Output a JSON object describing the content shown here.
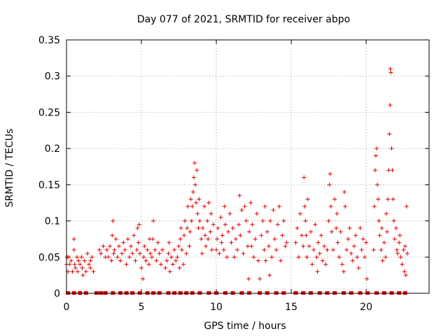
{
  "chart_data": {
    "type": "scatter",
    "title": "Day 077 of 2021, SRMTID for receiver abpo",
    "xlabel": "GPS time / hours",
    "ylabel": "SRMTID / TECUs",
    "xlim": [
      0,
      24.2
    ],
    "ylim": [
      0,
      0.35
    ],
    "x_ticks": [
      0,
      5,
      10,
      15,
      20
    ],
    "x_tick_labels": [
      "0",
      "5",
      "10",
      "15",
      "20"
    ],
    "y_ticks": [
      0,
      0.05,
      0.1,
      0.15,
      0.2,
      0.25,
      0.3,
      0.35
    ],
    "y_tick_labels": [
      "0",
      "0.05",
      "0.1",
      "0.15",
      "0.2",
      "0.25",
      "0.3",
      "0.35"
    ],
    "grid": true,
    "marker": "+",
    "color": "#e00000",
    "zero_baseline_x": [
      0.1,
      0.5,
      0.9,
      1.3,
      2.0,
      2.3,
      2.6,
      3.1,
      3.6,
      4.0,
      4.4,
      4.9,
      5.4,
      5.8,
      6.2,
      6.8,
      7.2,
      7.6,
      8.0,
      8.4,
      8.9,
      9.5,
      10.0,
      10.6,
      11.1,
      11.7,
      12.2,
      12.9,
      13.4,
      14.0,
      14.5,
      15.3,
      15.8,
      16.3,
      16.9,
      17.4,
      17.9,
      18.5,
      19.0,
      19.6,
      20.1,
      20.7,
      21.2,
      21.7,
      22.2,
      22.6
    ],
    "series": [
      {
        "name": "abpo",
        "points": [
          [
            0.0,
            0.04
          ],
          [
            0.05,
            0.05
          ],
          [
            0.1,
            0.03
          ],
          [
            0.15,
            0.05
          ],
          [
            0.2,
            0.04
          ],
          [
            0.3,
            0.045
          ],
          [
            0.4,
            0.03
          ],
          [
            0.5,
            0.06
          ],
          [
            0.55,
            0.04
          ],
          [
            0.6,
            0.035
          ],
          [
            0.7,
            0.05
          ],
          [
            0.75,
            0.03
          ],
          [
            0.8,
            0.045
          ],
          [
            0.9,
            0.04
          ],
          [
            1.0,
            0.05
          ],
          [
            1.05,
            0.035
          ],
          [
            1.1,
            0.025
          ],
          [
            1.2,
            0.045
          ],
          [
            1.3,
            0.03
          ],
          [
            1.4,
            0.055
          ],
          [
            1.5,
            0.04
          ],
          [
            1.6,
            0.035
          ],
          [
            1.7,
            0.05
          ],
          [
            1.8,
            0.03
          ],
          [
            0.5,
            0.075
          ],
          [
            1.6,
            0.045
          ],
          [
            2.2,
            0.06
          ],
          [
            2.3,
            0.055
          ],
          [
            2.45,
            0.065
          ],
          [
            2.6,
            0.05
          ],
          [
            2.7,
            0.06
          ],
          [
            2.8,
            0.05
          ],
          [
            2.9,
            0.065
          ],
          [
            3.0,
            0.045
          ],
          [
            3.05,
            0.08
          ],
          [
            3.1,
            0.1
          ],
          [
            3.15,
            0.055
          ],
          [
            3.2,
            0.06
          ],
          [
            3.3,
            0.075
          ],
          [
            3.4,
            0.05
          ],
          [
            3.5,
            0.065
          ],
          [
            3.6,
            0.045
          ],
          [
            3.7,
            0.055
          ],
          [
            3.8,
            0.07
          ],
          [
            3.9,
            0.06
          ],
          [
            4.0,
            0.04
          ],
          [
            4.1,
            0.075
          ],
          [
            4.2,
            0.05
          ],
          [
            4.3,
            0.065
          ],
          [
            4.4,
            0.055
          ],
          [
            4.5,
            0.08
          ],
          [
            4.6,
            0.045
          ],
          [
            4.7,
            0.06
          ],
          [
            4.8,
            0.07
          ],
          [
            4.9,
            0.055
          ],
          [
            4.75,
            0.09
          ],
          [
            4.85,
            0.095
          ],
          [
            5.0,
            0.035
          ],
          [
            5.1,
            0.02
          ],
          [
            5.15,
            0.05
          ],
          [
            5.2,
            0.065
          ],
          [
            5.3,
            0.045
          ],
          [
            5.4,
            0.06
          ],
          [
            5.5,
            0.04
          ],
          [
            5.55,
            0.075
          ],
          [
            5.6,
            0.055
          ],
          [
            5.7,
            0.05
          ],
          [
            5.75,
            0.075
          ],
          [
            5.8,
            0.1
          ],
          [
            5.9,
            0.06
          ],
          [
            6.0,
            0.045
          ],
          [
            6.1,
            0.07
          ],
          [
            6.2,
            0.055
          ],
          [
            6.3,
            0.04
          ],
          [
            6.4,
            0.06
          ],
          [
            6.6,
            0.035
          ],
          [
            6.7,
            0.045
          ],
          [
            6.8,
            0.055
          ],
          [
            6.85,
            0.07
          ],
          [
            6.9,
            0.03
          ],
          [
            7.0,
            0.05
          ],
          [
            7.1,
            0.04
          ],
          [
            7.2,
            0.06
          ],
          [
            7.3,
            0.045
          ],
          [
            7.4,
            0.05
          ],
          [
            7.5,
            0.065
          ],
          [
            7.55,
            0.035
          ],
          [
            7.6,
            0.075
          ],
          [
            7.65,
            0.09
          ],
          [
            7.7,
            0.06
          ],
          [
            7.8,
            0.04
          ],
          [
            7.85,
            0.08
          ],
          [
            7.9,
            0.1
          ],
          [
            8.0,
            0.055
          ],
          [
            8.05,
            0.09
          ],
          [
            8.1,
            0.12
          ],
          [
            8.2,
            0.065
          ],
          [
            8.25,
            0.085
          ],
          [
            8.3,
            0.13
          ],
          [
            8.35,
            0.1
          ],
          [
            8.4,
            0.12
          ],
          [
            8.45,
            0.14
          ],
          [
            8.5,
            0.16
          ],
          [
            8.55,
            0.18
          ],
          [
            8.6,
            0.15
          ],
          [
            8.65,
            0.125
          ],
          [
            8.7,
            0.17
          ],
          [
            8.75,
            0.11
          ],
          [
            8.8,
            0.09
          ],
          [
            8.85,
            0.13
          ],
          [
            8.9,
            0.1
          ],
          [
            9.0,
            0.075
          ],
          [
            9.05,
            0.055
          ],
          [
            9.1,
            0.09
          ],
          [
            9.2,
            0.12
          ],
          [
            9.25,
            0.08
          ],
          [
            9.3,
            0.065
          ],
          [
            9.4,
            0.1
          ],
          [
            9.45,
            0.075
          ],
          [
            9.5,
            0.125
          ],
          [
            9.6,
            0.085
          ],
          [
            9.65,
            0.11
          ],
          [
            9.7,
            0.06
          ],
          [
            9.8,
            0.095
          ],
          [
            10.0,
            0.06
          ],
          [
            10.05,
            0.075
          ],
          [
            10.1,
            0.09
          ],
          [
            10.2,
            0.055
          ],
          [
            10.3,
            0.105
          ],
          [
            10.35,
            0.07
          ],
          [
            10.4,
            0.08
          ],
          [
            10.5,
            0.06
          ],
          [
            10.55,
            0.12
          ],
          [
            10.6,
            0.095
          ],
          [
            10.7,
            0.05
          ],
          [
            10.8,
            0.085
          ],
          [
            10.9,
            0.11
          ],
          [
            11.0,
            0.07
          ],
          [
            11.1,
            0.09
          ],
          [
            11.2,
            0.05
          ],
          [
            11.3,
            0.075
          ],
          [
            11.4,
            0.06
          ],
          [
            11.5,
            0.095
          ],
          [
            11.55,
            0.135
          ],
          [
            11.6,
            0.08
          ],
          [
            11.7,
            0.115
          ],
          [
            11.8,
            0.055
          ],
          [
            11.9,
            0.12
          ],
          [
            12.0,
            0.1
          ],
          [
            12.1,
            0.065
          ],
          [
            12.15,
            0.02
          ],
          [
            12.2,
            0.085
          ],
          [
            12.3,
            0.125
          ],
          [
            12.35,
            0.065
          ],
          [
            12.4,
            0.095
          ],
          [
            12.5,
            0.05
          ],
          [
            12.6,
            0.075
          ],
          [
            12.7,
            0.11
          ],
          [
            12.8,
            0.045
          ],
          [
            12.9,
            0.02
          ],
          [
            13.0,
            0.08
          ],
          [
            13.1,
            0.1
          ],
          [
            13.2,
            0.06
          ],
          [
            13.25,
            0.12
          ],
          [
            13.3,
            0.045
          ],
          [
            13.4,
            0.085
          ],
          [
            13.5,
            0.065
          ],
          [
            13.55,
            0.025
          ],
          [
            13.6,
            0.1
          ],
          [
            13.7,
            0.05
          ],
          [
            13.8,
            0.115
          ],
          [
            13.9,
            0.075
          ],
          [
            14.0,
            0.06
          ],
          [
            14.1,
            0.095
          ],
          [
            14.2,
            0.12
          ],
          [
            14.3,
            0.045
          ],
          [
            14.4,
            0.08
          ],
          [
            14.5,
            0.1
          ],
          [
            14.6,
            0.065
          ],
          [
            14.7,
            0.07
          ],
          [
            15.3,
            0.07
          ],
          [
            15.4,
            0.09
          ],
          [
            15.5,
            0.05
          ],
          [
            15.6,
            0.11
          ],
          [
            15.7,
            0.08
          ],
          [
            15.8,
            0.065
          ],
          [
            15.85,
            0.16
          ],
          [
            15.9,
            0.12
          ],
          [
            15.95,
            0.1
          ],
          [
            16.0,
            0.08
          ],
          [
            16.05,
            0.05
          ],
          [
            16.1,
            0.13
          ],
          [
            16.2,
            0.065
          ],
          [
            16.3,
            0.085
          ],
          [
            16.4,
            0.04
          ],
          [
            16.5,
            0.06
          ],
          [
            16.6,
            0.095
          ],
          [
            16.7,
            0.05
          ],
          [
            16.75,
            0.03
          ],
          [
            16.8,
            0.07
          ],
          [
            16.9,
            0.055
          ],
          [
            17.0,
            0.08
          ],
          [
            17.1,
            0.045
          ],
          [
            17.2,
            0.065
          ],
          [
            17.3,
            0.04
          ],
          [
            17.4,
            0.06
          ],
          [
            17.5,
            0.1
          ],
          [
            17.55,
            0.15
          ],
          [
            17.6,
            0.165
          ],
          [
            17.65,
            0.12
          ],
          [
            17.7,
            0.085
          ],
          [
            17.8,
            0.06
          ],
          [
            17.9,
            0.13
          ],
          [
            18.0,
            0.09
          ],
          [
            18.05,
            0.11
          ],
          [
            18.1,
            0.07
          ],
          [
            18.2,
            0.05
          ],
          [
            18.3,
            0.085
          ],
          [
            18.4,
            0.04
          ],
          [
            18.5,
            0.03
          ],
          [
            18.55,
            0.14
          ],
          [
            18.6,
            0.12
          ],
          [
            18.7,
            0.06
          ],
          [
            18.8,
            0.075
          ],
          [
            18.9,
            0.09
          ],
          [
            19.0,
            0.055
          ],
          [
            19.1,
            0.045
          ],
          [
            19.2,
            0.065
          ],
          [
            19.3,
            0.08
          ],
          [
            19.4,
            0.05
          ],
          [
            19.5,
            0.035
          ],
          [
            19.6,
            0.09
          ],
          [
            19.7,
            0.06
          ],
          [
            19.8,
            0.075
          ],
          [
            19.9,
            0.05
          ],
          [
            20.0,
            0.07
          ],
          [
            20.05,
            0.02
          ],
          [
            20.5,
            0.06
          ],
          [
            20.55,
            0.12
          ],
          [
            20.6,
            0.17
          ],
          [
            20.65,
            0.19
          ],
          [
            20.7,
            0.2
          ],
          [
            20.75,
            0.15
          ],
          [
            20.8,
            0.13
          ],
          [
            20.85,
            0.1
          ],
          [
            20.9,
            0.08
          ],
          [
            21.0,
            0.06
          ],
          [
            21.05,
            0.09
          ],
          [
            21.1,
            0.045
          ],
          [
            21.2,
            0.07
          ],
          [
            21.3,
            0.05
          ],
          [
            21.35,
            0.11
          ],
          [
            21.4,
            0.085
          ],
          [
            21.45,
            0.13
          ],
          [
            21.5,
            0.17
          ],
          [
            21.55,
            0.22
          ],
          [
            21.6,
            0.26
          ],
          [
            21.62,
            0.31
          ],
          [
            21.65,
            0.305
          ],
          [
            21.7,
            0.2
          ],
          [
            21.75,
            0.17
          ],
          [
            21.8,
            0.13
          ],
          [
            21.85,
            0.1
          ],
          [
            21.9,
            0.075
          ],
          [
            22.0,
            0.09
          ],
          [
            22.05,
            0.06
          ],
          [
            22.1,
            0.055
          ],
          [
            22.2,
            0.07
          ],
          [
            22.25,
            0.08
          ],
          [
            22.3,
            0.05
          ],
          [
            22.4,
            0.04
          ],
          [
            22.5,
            0.06
          ],
          [
            22.55,
            0.03
          ],
          [
            22.6,
            0.065
          ],
          [
            22.65,
            0.025
          ],
          [
            22.7,
            0.12
          ],
          [
            22.75,
            0.055
          ]
        ]
      }
    ]
  }
}
